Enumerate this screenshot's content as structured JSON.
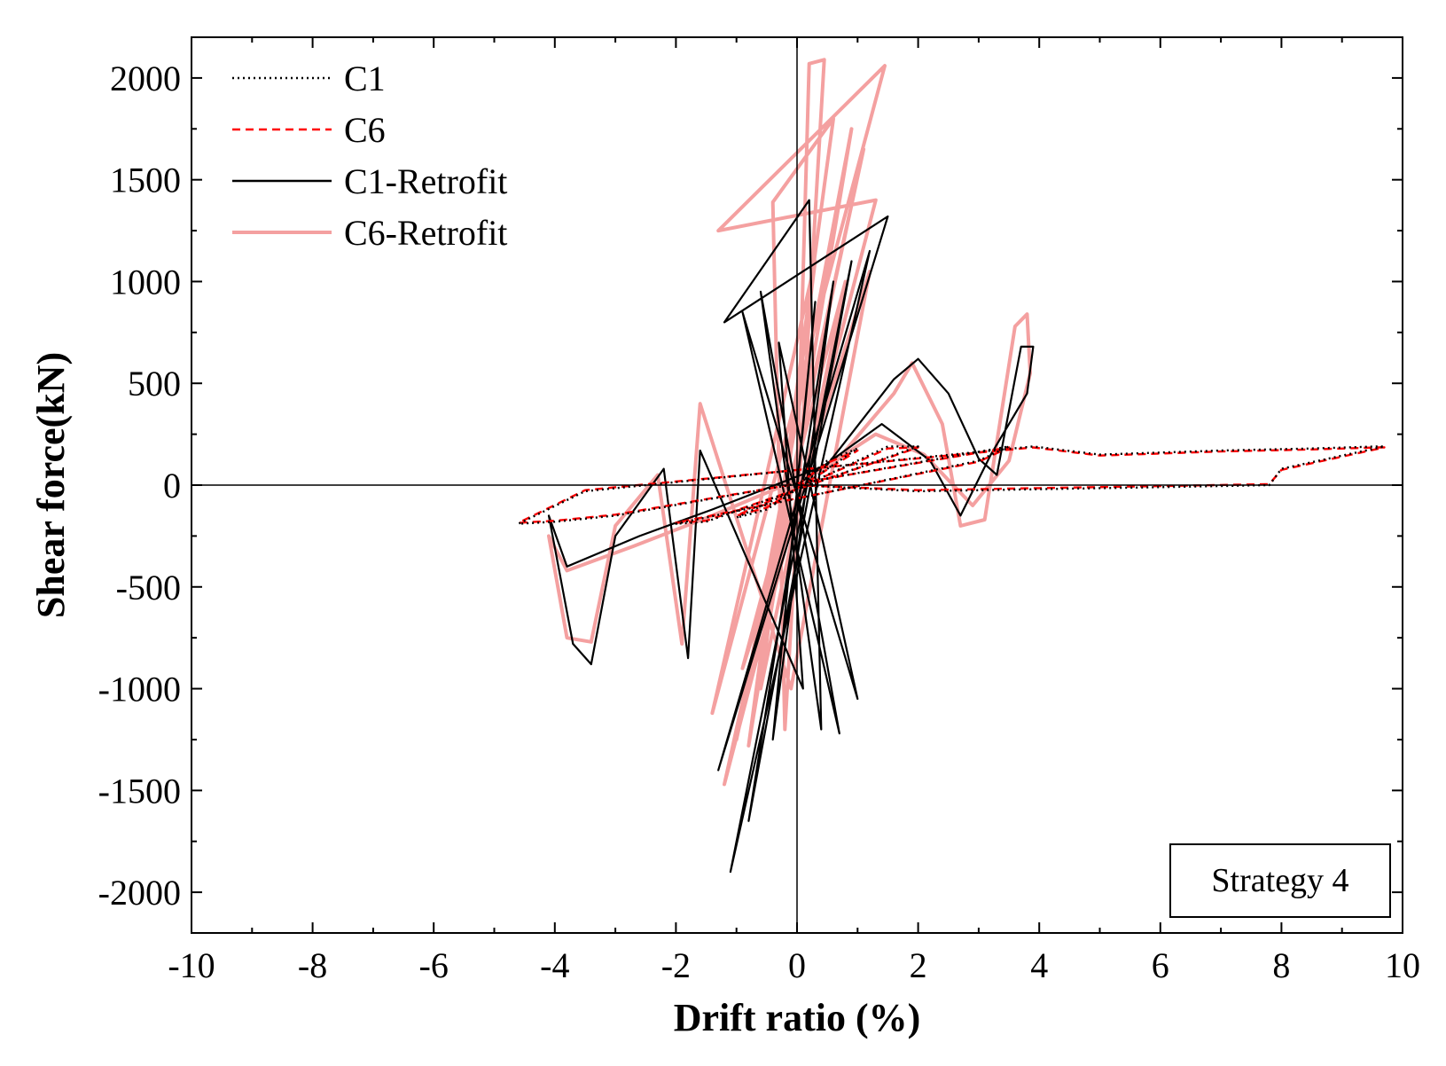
{
  "chart_data": {
    "type": "line",
    "title": "",
    "xlabel": "Drift ratio (%)",
    "ylabel": "Shear force(kN)",
    "xlim": [
      -10,
      10
    ],
    "ylim": [
      -2200,
      2200
    ],
    "xticks": [
      -10,
      -8,
      -6,
      -4,
      -2,
      0,
      2,
      4,
      6,
      8,
      10
    ],
    "yticks": [
      -2000,
      -1500,
      -1000,
      -500,
      0,
      500,
      1000,
      1500,
      2000
    ],
    "grid": false,
    "legend_position": "top-left",
    "annotation": "Strategy 4",
    "series": [
      {
        "name": "C1",
        "color": "#000000",
        "style": "dotted",
        "x": [
          0,
          0.5,
          1.0,
          -0.5,
          -1.0,
          1.5,
          2.0,
          -1.5,
          -2.0,
          3.0,
          3.5,
          -3.0,
          -4.0,
          -4.6,
          -3.5,
          3.9,
          5.0,
          7.0,
          8.5,
          9.6,
          9.7,
          8.0,
          7.8,
          6.0,
          4.0,
          2.0,
          0
        ],
        "y": [
          0,
          120,
          180,
          -120,
          -160,
          190,
          190,
          -180,
          -190,
          120,
          190,
          -150,
          -180,
          -190,
          -30,
          190,
          150,
          170,
          180,
          190,
          190,
          80,
          0,
          -10,
          -20,
          -30,
          0
        ]
      },
      {
        "name": "C6",
        "color": "#ff0000",
        "style": "dashed",
        "x": [
          0,
          0.5,
          1.0,
          -0.5,
          -1.0,
          1.5,
          2.0,
          -1.5,
          -2.0,
          3.0,
          3.5,
          -3.0,
          -4.0,
          -4.6,
          -3.5,
          3.9,
          5.0,
          7.0,
          8.5,
          9.6,
          9.7,
          8.0,
          7.8,
          6.0,
          4.0,
          2.0,
          0
        ],
        "y": [
          0,
          110,
          170,
          -110,
          -150,
          180,
          185,
          -175,
          -185,
          115,
          185,
          -145,
          -175,
          -185,
          -25,
          185,
          145,
          165,
          175,
          185,
          185,
          75,
          5,
          -5,
          -15,
          -25,
          0
        ]
      },
      {
        "name": "C1-Retrofit",
        "color": "#000000",
        "style": "solid",
        "x": [
          0,
          0.3,
          -0.4,
          0.6,
          -0.8,
          0.9,
          -1.1,
          1.2,
          -1.3,
          1.5,
          -1.2,
          0.2,
          0.4,
          -0.6,
          0.7,
          -0.9,
          1.0,
          -0.3,
          0.1,
          -1.6,
          -1.8,
          -2.2,
          -3.0,
          -3.4,
          -3.7,
          -4.1,
          -3.8,
          -2.6,
          -1.4,
          0.5,
          1.6,
          2.0,
          2.5,
          3.0,
          3.3,
          3.7,
          3.9,
          3.8,
          3.2,
          2.7,
          2.2,
          1.4,
          0
        ],
        "y": [
          0,
          900,
          -1250,
          1000,
          -1650,
          1100,
          -1900,
          1150,
          -1400,
          1320,
          800,
          1400,
          -1200,
          950,
          -1220,
          850,
          -1050,
          700,
          -1000,
          170,
          -850,
          80,
          -250,
          -880,
          -780,
          -150,
          -400,
          -250,
          -120,
          100,
          520,
          620,
          450,
          130,
          50,
          680,
          680,
          450,
          150,
          -150,
          120,
          300,
          0
        ]
      },
      {
        "name": "C6-Retrofit",
        "color": "#f4a0a0",
        "style": "solid",
        "x": [
          0,
          0.2,
          0.45,
          -0.2,
          -0.4,
          0.6,
          -0.8,
          0.9,
          -1.0,
          1.1,
          -1.2,
          1.3,
          -1.3,
          1.45,
          -1.4,
          0.3,
          -0.6,
          0.8,
          -0.9,
          1.2,
          -0.1,
          -1.6,
          -1.9,
          -2.3,
          -3.0,
          -3.4,
          -3.8,
          -4.1,
          -3.8,
          -2.7,
          -1.4,
          0.6,
          1.6,
          1.9,
          2.4,
          2.7,
          3.1,
          3.6,
          3.8,
          3.85,
          3.5,
          2.9,
          2.1,
          1.3,
          0
        ],
        "y": [
          0,
          2070,
          2090,
          -1200,
          1390,
          1800,
          -1280,
          1750,
          -1250,
          1650,
          -1470,
          1400,
          1250,
          2060,
          -1120,
          1100,
          -1000,
          1000,
          -900,
          1050,
          -1000,
          400,
          -780,
          50,
          -200,
          -770,
          -750,
          -250,
          -420,
          -300,
          -150,
          100,
          450,
          600,
          300,
          -200,
          -170,
          780,
          840,
          550,
          120,
          -100,
          150,
          250,
          0
        ]
      }
    ]
  }
}
